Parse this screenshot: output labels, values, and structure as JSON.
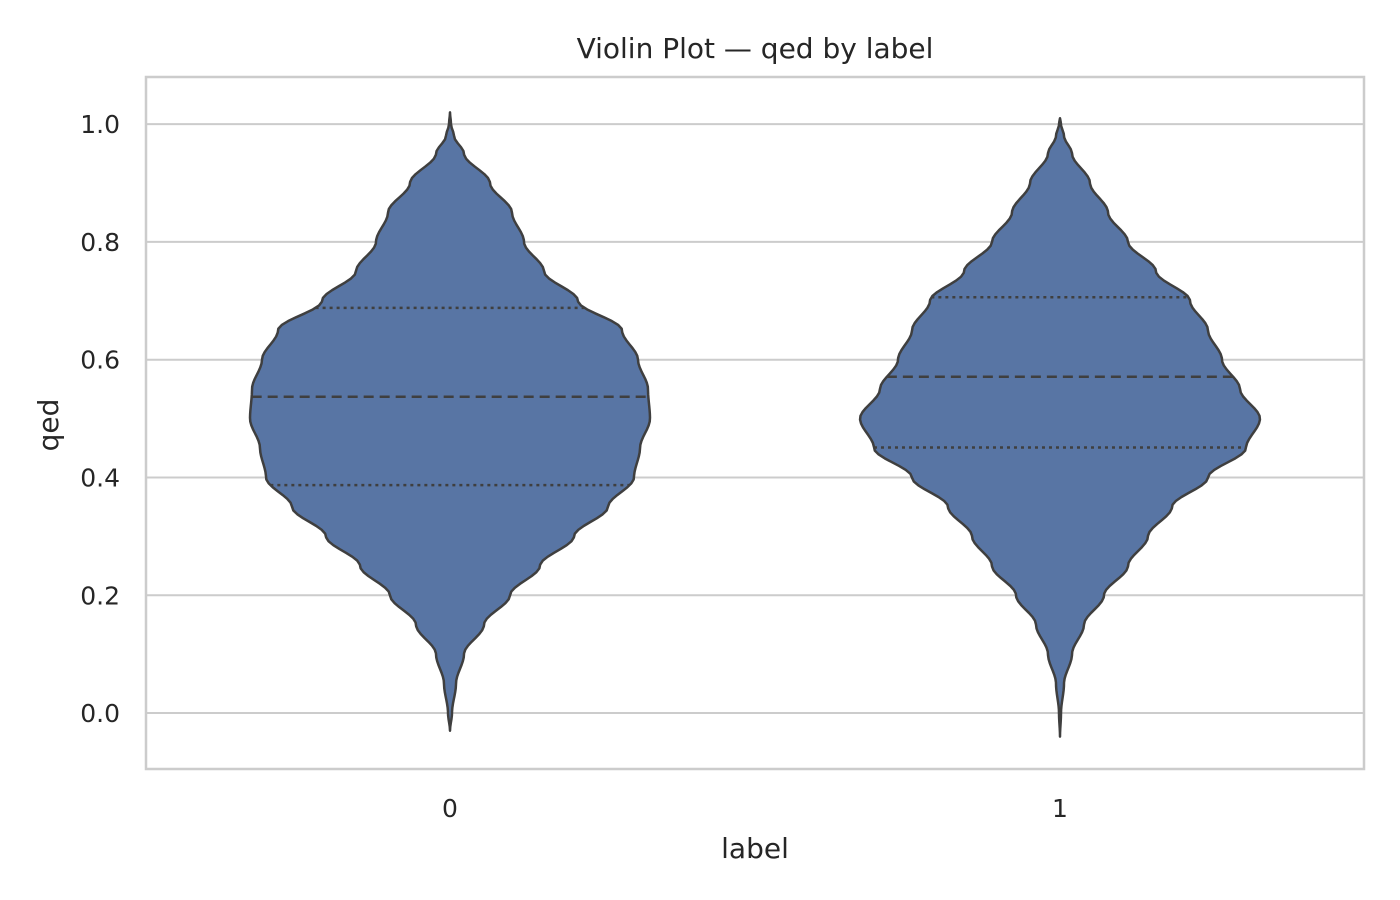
{
  "chart_data": {
    "type": "violin",
    "title": "Violin Plot — qed by label",
    "xlabel": "label",
    "ylabel": "qed",
    "categories": [
      "0",
      "1"
    ],
    "ylim": [
      -0.095,
      1.08
    ],
    "yticks": [
      0.0,
      0.2,
      0.4,
      0.6,
      0.8,
      1.0
    ],
    "ytick_labels": [
      "0.0",
      "0.2",
      "0.4",
      "0.6",
      "0.8",
      "1.0"
    ],
    "grid": true,
    "colors": {
      "fill": "#5875a4",
      "edge": "#3f3f3f",
      "grid": "#cccccc",
      "text": "#262626"
    },
    "violins": [
      {
        "category": "0",
        "min": -0.03,
        "max": 1.02,
        "quartiles": {
          "q1": 0.387,
          "median": 0.537,
          "q3": 0.688
        },
        "density_profile": [
          [
            -0.03,
            0.0
          ],
          [
            0.0,
            0.01
          ],
          [
            0.05,
            0.03
          ],
          [
            0.1,
            0.07
          ],
          [
            0.15,
            0.17
          ],
          [
            0.2,
            0.3
          ],
          [
            0.25,
            0.45
          ],
          [
            0.3,
            0.62
          ],
          [
            0.35,
            0.79
          ],
          [
            0.4,
            0.92
          ],
          [
            0.45,
            0.95
          ],
          [
            0.5,
            1.0
          ],
          [
            0.55,
            0.99
          ],
          [
            0.6,
            0.94
          ],
          [
            0.65,
            0.86
          ],
          [
            0.7,
            0.64
          ],
          [
            0.75,
            0.47
          ],
          [
            0.8,
            0.37
          ],
          [
            0.85,
            0.31
          ],
          [
            0.9,
            0.2
          ],
          [
            0.95,
            0.07
          ],
          [
            0.98,
            0.02
          ],
          [
            1.0,
            0.005
          ],
          [
            1.02,
            0.0
          ]
        ]
      },
      {
        "category": "1",
        "min": -0.04,
        "max": 1.01,
        "quartiles": {
          "q1": 0.451,
          "median": 0.571,
          "q3": 0.706
        },
        "density_profile": [
          [
            -0.04,
            0.0
          ],
          [
            0.0,
            0.005
          ],
          [
            0.05,
            0.02
          ],
          [
            0.1,
            0.06
          ],
          [
            0.15,
            0.12
          ],
          [
            0.2,
            0.22
          ],
          [
            0.25,
            0.34
          ],
          [
            0.3,
            0.44
          ],
          [
            0.35,
            0.56
          ],
          [
            0.4,
            0.74
          ],
          [
            0.45,
            0.93
          ],
          [
            0.5,
            1.0
          ],
          [
            0.55,
            0.9
          ],
          [
            0.6,
            0.81
          ],
          [
            0.65,
            0.74
          ],
          [
            0.7,
            0.65
          ],
          [
            0.75,
            0.48
          ],
          [
            0.8,
            0.34
          ],
          [
            0.85,
            0.24
          ],
          [
            0.9,
            0.15
          ],
          [
            0.95,
            0.06
          ],
          [
            0.98,
            0.02
          ],
          [
            1.0,
            0.005
          ],
          [
            1.01,
            0.0
          ]
        ]
      }
    ]
  }
}
